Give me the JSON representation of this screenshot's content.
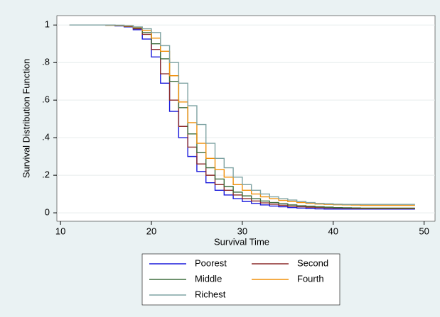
{
  "chart_data": {
    "type": "step",
    "x_label": "Survival Time",
    "y_label": "Survival Distribution Function",
    "x": [
      11,
      12,
      13,
      14,
      15,
      16,
      17,
      18,
      19,
      20,
      21,
      22,
      23,
      24,
      25,
      26,
      27,
      28,
      29,
      30,
      31,
      32,
      33,
      34,
      35,
      36,
      37,
      38,
      39,
      40,
      41,
      42,
      43,
      44,
      45,
      46,
      47,
      48,
      49
    ],
    "xlim": [
      9.6,
      51.2
    ],
    "ylim": [
      -0.045,
      1.05
    ],
    "xticks": [
      10,
      20,
      30,
      40,
      50
    ],
    "yticks": [
      0,
      {
        "value": 0.2,
        "label": ".2"
      },
      {
        "value": 0.4,
        "label": ".4"
      },
      {
        "value": 0.6,
        "label": ".6"
      },
      {
        "value": 0.8,
        "label": ".8"
      },
      1
    ],
    "grid": true,
    "series": [
      {
        "name": "Poorest",
        "color": "#1a1adb",
        "values": [
          1,
          1,
          1,
          1,
          0.998,
          0.995,
          0.99,
          0.975,
          0.925,
          0.83,
          0.69,
          0.54,
          0.4,
          0.3,
          0.22,
          0.16,
          0.12,
          0.095,
          0.075,
          0.06,
          0.05,
          0.042,
          0.036,
          0.032,
          0.028,
          0.025,
          0.023,
          0.021,
          0.02,
          0.02,
          0.02,
          0.02,
          0.02,
          0.02,
          0.02,
          0.02,
          0.02,
          0.02,
          0.02
        ]
      },
      {
        "name": "Second",
        "color": "#8b2a2a",
        "values": [
          1,
          1,
          1,
          1,
          0.998,
          0.996,
          0.992,
          0.98,
          0.95,
          0.87,
          0.74,
          0.6,
          0.46,
          0.35,
          0.26,
          0.2,
          0.15,
          0.12,
          0.095,
          0.075,
          0.063,
          0.053,
          0.046,
          0.04,
          0.035,
          0.032,
          0.03,
          0.028,
          0.026,
          0.025,
          0.024,
          0.023,
          0.022,
          0.022,
          0.022,
          0.022,
          0.022,
          0.022,
          0.022
        ]
      },
      {
        "name": "Middle",
        "color": "#3e6e3e",
        "values": [
          1,
          1,
          1,
          1,
          0.999,
          0.997,
          0.994,
          0.985,
          0.96,
          0.9,
          0.82,
          0.7,
          0.56,
          0.42,
          0.32,
          0.24,
          0.18,
          0.14,
          0.11,
          0.09,
          0.075,
          0.063,
          0.055,
          0.048,
          0.042,
          0.038,
          0.035,
          0.032,
          0.03,
          0.028,
          0.027,
          0.026,
          0.025,
          0.025,
          0.025,
          0.025,
          0.025,
          0.025,
          0.025
        ]
      },
      {
        "name": "Fourth",
        "color": "#f0900a",
        "values": [
          1,
          1,
          1,
          1,
          0.999,
          0.998,
          0.995,
          0.988,
          0.97,
          0.93,
          0.86,
          0.73,
          0.59,
          0.48,
          0.37,
          0.29,
          0.23,
          0.19,
          0.15,
          0.12,
          0.1,
          0.085,
          0.075,
          0.066,
          0.06,
          0.055,
          0.05,
          0.047,
          0.045,
          0.043,
          0.042,
          0.041,
          0.04,
          0.04,
          0.04,
          0.04,
          0.04,
          0.04,
          0.04
        ]
      },
      {
        "name": "Richest",
        "color": "#7fa3a3",
        "values": [
          1,
          1,
          1,
          1,
          1,
          0.999,
          0.997,
          0.99,
          0.98,
          0.96,
          0.89,
          0.8,
          0.69,
          0.57,
          0.47,
          0.37,
          0.29,
          0.24,
          0.19,
          0.15,
          0.12,
          0.1,
          0.085,
          0.075,
          0.068,
          0.06,
          0.055,
          0.05,
          0.048,
          0.046,
          0.045,
          0.045,
          0.045,
          0.045,
          0.045,
          0.045,
          0.045,
          0.045,
          0.045
        ]
      }
    ]
  }
}
